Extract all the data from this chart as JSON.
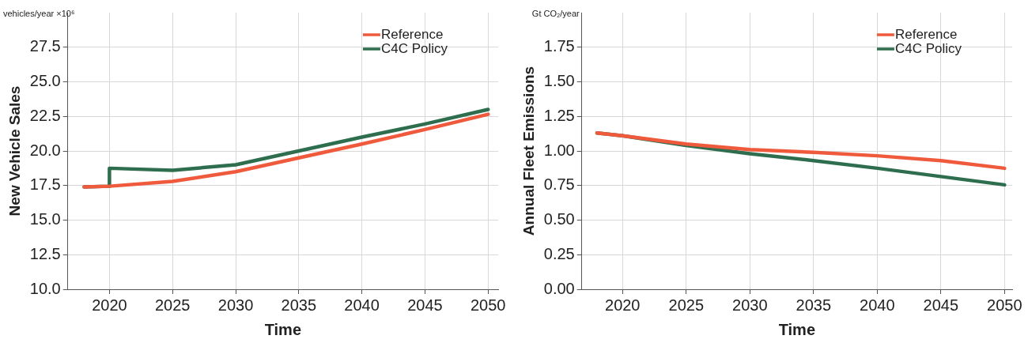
{
  "chart_data": [
    {
      "type": "line",
      "xlabel": "Time",
      "ylabel": "New Vehicle Sales",
      "annotations": [
        "vehicles/year ×10⁶"
      ],
      "series": [
        {
          "name": "Reference",
          "color": "#f05a3c",
          "x": [
            2018,
            2020,
            2025,
            2030,
            2035,
            2040,
            2045,
            2050
          ],
          "values": [
            17.4,
            17.45,
            17.8,
            18.5,
            19.5,
            20.5,
            21.55,
            22.65
          ]
        },
        {
          "name": "C4C Policy",
          "color": "#2e6e4e",
          "x": [
            2018,
            2020,
            2020,
            2025,
            2030,
            2035,
            2040,
            2045,
            2050
          ],
          "values": [
            17.4,
            17.45,
            18.75,
            18.6,
            19.0,
            20.0,
            21.0,
            21.95,
            23.0
          ]
        }
      ],
      "xlim": [
        2016.7,
        2050.8
      ],
      "xticks": [
        2020,
        2025,
        2030,
        2035,
        2040,
        2045,
        2050
      ],
      "ylim": [
        10,
        30
      ],
      "yticks": [
        {
          "value": 10,
          "label": "10.0"
        },
        {
          "value": 12.5,
          "label": "12.5"
        },
        {
          "value": 15,
          "label": "15.0"
        },
        {
          "value": 17.5,
          "label": "17.5"
        },
        {
          "value": 20,
          "label": "20.0"
        },
        {
          "value": 22.5,
          "label": "22.5"
        },
        {
          "value": 25,
          "label": "25.0"
        },
        {
          "value": 27.5,
          "label": "27.5"
        }
      ],
      "grid": true,
      "legend": "top right",
      "marker": "none",
      "line_style": "solid"
    },
    {
      "type": "line",
      "xlabel": "Time",
      "ylabel": "Annual Fleet Emissions",
      "annotations": [
        "Gt CO₂/year"
      ],
      "series": [
        {
          "name": "Reference",
          "color": "#f05a3c",
          "x": [
            2018,
            2020,
            2025,
            2030,
            2035,
            2040,
            2045,
            2050
          ],
          "values": [
            1.13,
            1.11,
            1.05,
            1.01,
            0.99,
            0.965,
            0.93,
            0.875
          ]
        },
        {
          "name": "C4C Policy",
          "color": "#2e6e4e",
          "x": [
            2018,
            2020,
            2025,
            2030,
            2035,
            2040,
            2045,
            2050
          ],
          "values": [
            1.13,
            1.11,
            1.04,
            0.98,
            0.93,
            0.875,
            0.815,
            0.755
          ]
        }
      ],
      "xlim": [
        2016.8,
        2050.6
      ],
      "xticks": [
        2020,
        2025,
        2030,
        2035,
        2040,
        2045,
        2050
      ],
      "ylim": [
        0,
        2
      ],
      "yticks": [
        {
          "value": 0,
          "label": "0.00"
        },
        {
          "value": 0.25,
          "label": "0.25"
        },
        {
          "value": 0.5,
          "label": "0.50"
        },
        {
          "value": 0.75,
          "label": "0.75"
        },
        {
          "value": 1,
          "label": "1.00"
        },
        {
          "value": 1.25,
          "label": "1.25"
        },
        {
          "value": 1.5,
          "label": "1.50"
        },
        {
          "value": 1.75,
          "label": "1.75"
        }
      ],
      "grid": true,
      "legend": "top right",
      "marker": "none",
      "line_style": "solid"
    }
  ]
}
